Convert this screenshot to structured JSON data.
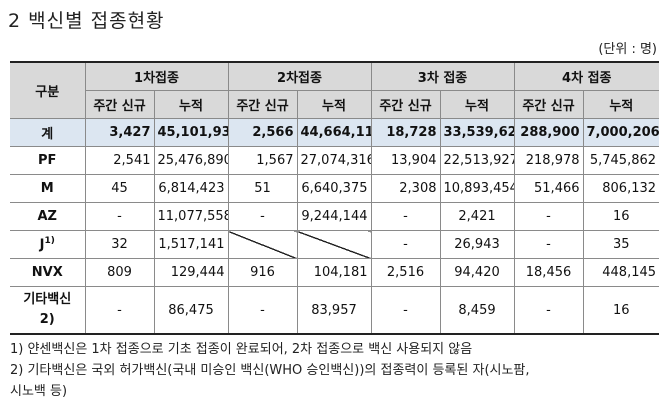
{
  "title": "2 백신별 접종현황",
  "unit": "(단위 : 명)",
  "header": {
    "category": "구분",
    "doses": [
      "1차접종",
      "2차접종",
      "3차 접종",
      "4차 접종"
    ],
    "weekly_new": "주간 신규",
    "cumulative": "누적"
  },
  "rows": [
    {
      "label": "계",
      "values": [
        "3,427",
        "45,101,931",
        "2,566",
        "44,664,114",
        "18,728",
        "33,539,624",
        "288,900",
        "7,000,206"
      ]
    },
    {
      "label": "PF",
      "values": [
        "2,541",
        "25,476,890",
        "1,567",
        "27,074,316",
        "13,904",
        "22,513,927",
        "218,978",
        "5,745,862"
      ]
    },
    {
      "label": "M",
      "values": [
        "45",
        "6,814,423",
        "51",
        "6,640,375",
        "2,308",
        "10,893,454",
        "51,466",
        "806,132"
      ]
    },
    {
      "label": "AZ",
      "values": [
        "-",
        "11,077,558",
        "-",
        "9,244,144",
        "-",
        "2,421",
        "-",
        "16"
      ]
    },
    {
      "label": "J",
      "sup": "1)",
      "values": [
        "32",
        "1,517,141",
        "",
        "",
        "-",
        "26,943",
        "-",
        "35"
      ]
    },
    {
      "label": "NVX",
      "values": [
        "809",
        "129,444",
        "916",
        "104,181",
        "2,516",
        "94,420",
        "18,456",
        "448,145"
      ]
    },
    {
      "label_line1": "기타백신",
      "label_line2": "2)",
      "values": [
        "-",
        "86,475",
        "-",
        "83,957",
        "-",
        "8,459",
        "-",
        "16"
      ]
    }
  ],
  "notes": [
    "1) 얀센백신은 1차 접종으로 기초 접종이 완료되어, 2차 접종으로 백신 사용되지 않음",
    "2) 기타백신은 국외 허가백신(국내 미승인 백신(WHO 승인백신))의 접종력이 등록된 자(시노팜,",
    "시노백 등)"
  ]
}
